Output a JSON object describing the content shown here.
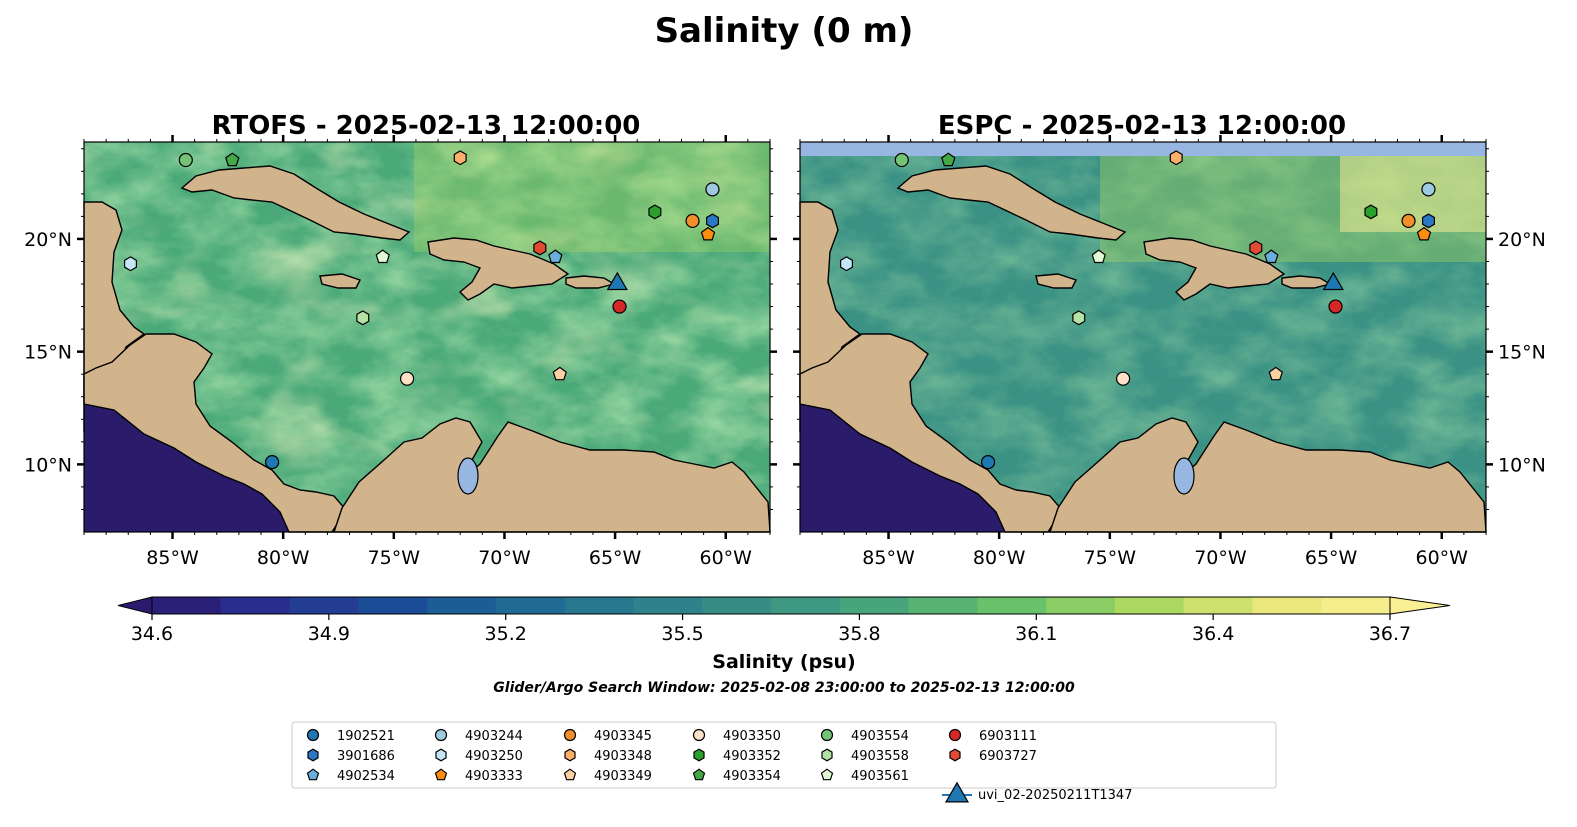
{
  "suptitle": "Salinity (0 m)",
  "panels": [
    {
      "title": "RTOFS - 2025-02-13 12:00:00"
    },
    {
      "title": "ESPC - 2025-02-13 12:00:00"
    }
  ],
  "map": {
    "lon_range": [
      -89.0,
      -58.0
    ],
    "lat_range": [
      7.0,
      24.3
    ],
    "x_ticks": [
      {
        "value": -85,
        "label": "85°W"
      },
      {
        "value": -80,
        "label": "80°W"
      },
      {
        "value": -75,
        "label": "75°W"
      },
      {
        "value": -70,
        "label": "70°W"
      },
      {
        "value": -65,
        "label": "65°W"
      },
      {
        "value": -60,
        "label": "60°W"
      }
    ],
    "y_ticks": [
      {
        "value": 10,
        "label": "10°N"
      },
      {
        "value": 15,
        "label": "15°N"
      },
      {
        "value": 20,
        "label": "20°N"
      }
    ],
    "land_color": "#d2b48c",
    "lake_color": "#97b6e1",
    "deep_color": "#2a1b6b"
  },
  "colorbar": {
    "min": 34.6,
    "max": 36.7,
    "extend": "both",
    "ticks": [
      "34.6",
      "34.9",
      "35.2",
      "35.5",
      "35.8",
      "36.1",
      "36.4",
      "36.7"
    ],
    "label": "Salinity (psu)",
    "colormap": [
      "#2b1a6e",
      "#283193",
      "#1a4f97",
      "#1f6a93",
      "#2c7f8c",
      "#3b9284",
      "#4ba979",
      "#6cc26a",
      "#a8d85f",
      "#e7e577",
      "#fbef94"
    ]
  },
  "search_window": "Glider/Argo Search Window: 2025-02-08 23:00:00 to 2025-02-13 12:00:00",
  "floats": [
    {
      "id": "1902521",
      "marker": "circle",
      "color": "#1f77b4",
      "lon": -80.5,
      "lat": 10.1
    },
    {
      "id": "3901686",
      "marker": "hexagon",
      "color": "#2b78c4",
      "lon": -60.6,
      "lat": 20.8
    },
    {
      "id": "4902534",
      "marker": "pentagon",
      "color": "#6aaee0",
      "lon": -67.7,
      "lat": 19.2
    },
    {
      "id": "4903244",
      "marker": "circle",
      "color": "#9ecae1",
      "lon": -60.6,
      "lat": 22.2
    },
    {
      "id": "4903250",
      "marker": "hexagon",
      "color": "#c6e6f7",
      "lon": -86.9,
      "lat": 18.9
    },
    {
      "id": "4903333",
      "marker": "pentagon",
      "color": "#fd8d0c",
      "lon": -60.8,
      "lat": 20.2
    },
    {
      "id": "4903345",
      "marker": "circle",
      "color": "#f28e2b",
      "lon": -61.5,
      "lat": 20.8
    },
    {
      "id": "4903348",
      "marker": "hexagon",
      "color": "#fdae6b",
      "lon": -72.0,
      "lat": 23.6
    },
    {
      "id": "4903349",
      "marker": "pentagon",
      "color": "#fdd0a2",
      "lon": -67.5,
      "lat": 14.0
    },
    {
      "id": "4903350",
      "marker": "circle",
      "color": "#fde0c5",
      "lon": -74.4,
      "lat": 13.8
    },
    {
      "id": "4903352",
      "marker": "hexagon",
      "color": "#2ca02c",
      "lon": -63.2,
      "lat": 21.2
    },
    {
      "id": "4903354",
      "marker": "pentagon",
      "color": "#43a845",
      "lon": -82.3,
      "lat": 23.5
    },
    {
      "id": "4903554",
      "marker": "circle",
      "color": "#74c476",
      "lon": -84.4,
      "lat": 23.5
    },
    {
      "id": "4903558",
      "marker": "hexagon",
      "color": "#b5e3a5",
      "lon": -76.4,
      "lat": 16.5
    },
    {
      "id": "4903561",
      "marker": "pentagon",
      "color": "#e1f7d5",
      "lon": -75.5,
      "lat": 19.2
    },
    {
      "id": "6903111",
      "marker": "circle",
      "color": "#d62728",
      "lon": -64.8,
      "lat": 17.0
    },
    {
      "id": "6903727",
      "marker": "hexagon",
      "color": "#e34a33",
      "lon": -68.4,
      "lat": 19.6
    },
    {
      "id": "uvi_02-20250211T1347",
      "marker": "triangle",
      "color": "#1f77b4",
      "lon": -64.9,
      "lat": 18.1
    }
  ]
}
